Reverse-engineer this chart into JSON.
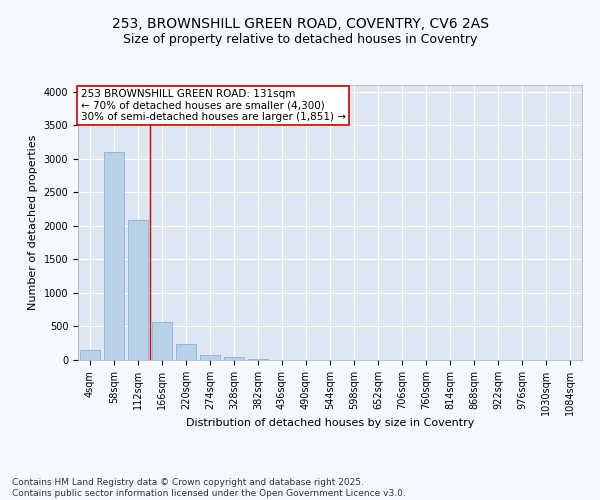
{
  "title_line1": "253, BROWNSHILL GREEN ROAD, COVENTRY, CV6 2AS",
  "title_line2": "Size of property relative to detached houses in Coventry",
  "xlabel": "Distribution of detached houses by size in Coventry",
  "ylabel": "Number of detached properties",
  "background_color": "#dde6f2",
  "fig_background_color": "#f5f8fd",
  "bar_color": "#b8d0e8",
  "bar_edge_color": "#7aadd4",
  "vline_color": "#cc0000",
  "vline_position": 2.5,
  "annotation_text": "253 BROWNSHILL GREEN ROAD: 131sqm\n← 70% of detached houses are smaller (4,300)\n30% of semi-detached houses are larger (1,851) →",
  "annotation_box_color": "#ffffff",
  "annotation_box_edge": "#cc0000",
  "categories": [
    "4sqm",
    "58sqm",
    "112sqm",
    "166sqm",
    "220sqm",
    "274sqm",
    "328sqm",
    "382sqm",
    "436sqm",
    "490sqm",
    "544sqm",
    "598sqm",
    "652sqm",
    "706sqm",
    "760sqm",
    "814sqm",
    "868sqm",
    "922sqm",
    "976sqm",
    "1030sqm",
    "1084sqm"
  ],
  "values": [
    150,
    3100,
    2080,
    570,
    240,
    70,
    40,
    10,
    0,
    0,
    0,
    0,
    0,
    0,
    0,
    0,
    0,
    0,
    0,
    0,
    0
  ],
  "ylim": [
    0,
    4100
  ],
  "yticks": [
    0,
    500,
    1000,
    1500,
    2000,
    2500,
    3000,
    3500,
    4000
  ],
  "footer": "Contains HM Land Registry data © Crown copyright and database right 2025.\nContains public sector information licensed under the Open Government Licence v3.0.",
  "grid_color": "#ffffff",
  "title_fontsize": 10,
  "subtitle_fontsize": 9,
  "axis_label_fontsize": 8,
  "tick_fontsize": 7,
  "footer_fontsize": 6.5,
  "annotation_fontsize": 7.5
}
